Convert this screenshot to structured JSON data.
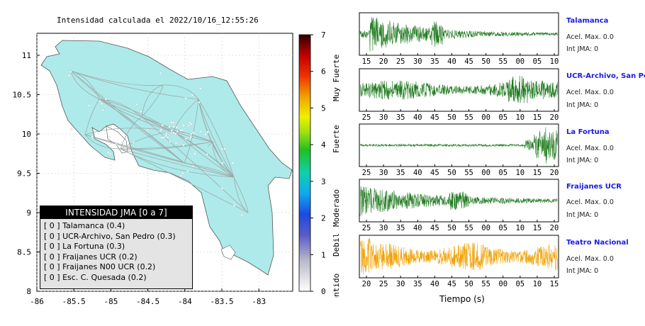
{
  "map": {
    "title": "Intensidad calculada el 2022/10/16_12:55:26",
    "x_ticks": [
      "-86",
      "-85.5",
      "-85",
      "-84.5",
      "-84",
      "-83.5",
      "-83"
    ],
    "y_ticks": [
      "11",
      "10.5",
      "10",
      "9.5",
      "9",
      "8.5",
      "8"
    ],
    "land_color": "#aeeaea",
    "legend": {
      "title": "INTENSIDAD JMA [0 a 7]",
      "items": [
        {
          "label": "[ 0 ]  Talamanca (0.4)"
        },
        {
          "label": "[ 0 ]  UCR-Archivo, San Pedro (0.3)"
        },
        {
          "label": "[ 0 ]  La Fortuna (0.3)"
        },
        {
          "label": "[ 0 ]  Fraijanes UCR (0.2)"
        },
        {
          "label": "[ 0 ]  Fraijanes N00 UCR (0.2)"
        },
        {
          "label": "[ 0 ]  Esc. C. Quesada (0.2)"
        }
      ]
    }
  },
  "colorbar": {
    "ticks": [
      "7",
      "6",
      "5",
      "4",
      "3",
      "2",
      "1",
      "0"
    ],
    "labels": [
      "Muy Fuerte",
      "Fuerte",
      "Moderado",
      "Debil",
      "No sentido"
    ]
  },
  "waveforms": {
    "xlabel": "Tiempo (s)",
    "panels": [
      {
        "station": "Talamanca",
        "acel": "Acel. Max. 0.0",
        "jma": "Int JMA: 0",
        "color": "#1f7a1f",
        "ticks": [
          "15",
          "20",
          "25",
          "30",
          "35",
          "40",
          "45",
          "50",
          "55",
          "00",
          "05",
          "10"
        ],
        "envelope": "decay"
      },
      {
        "station": "UCR-Archivo, San Pedro",
        "acel": "Acel. Max. 0.0",
        "jma": "Int JMA: 0",
        "color": "#1f7a1f",
        "ticks": [
          "25",
          "30",
          "35",
          "40",
          "45",
          "50",
          "55",
          "00",
          "05",
          "10",
          "15",
          "20"
        ],
        "envelope": "steady"
      },
      {
        "station": "La Fortuna",
        "acel": "Acel. Max. 0.0",
        "jma": "Int JMA: 0",
        "color": "#1f7a1f",
        "ticks": [
          "25",
          "30",
          "35",
          "40",
          "45",
          "50",
          "55",
          "00",
          "05",
          "10",
          "15",
          "20"
        ],
        "envelope": "late"
      },
      {
        "station": "Fraijanes UCR",
        "acel": "Acel. Max. 0.0",
        "jma": "Int JMA: 0",
        "color": "#1f7a1f",
        "ticks": [
          "25",
          "30",
          "35",
          "40",
          "45",
          "50",
          "55",
          "00",
          "05",
          "10",
          "15",
          "20"
        ],
        "envelope": "decay2"
      },
      {
        "station": "Teatro Nacional",
        "acel": "Acel. Max. 0.0",
        "jma": "Int JMA: 0",
        "color": "#f0a000",
        "ticks": [
          "20",
          "25",
          "30",
          "35",
          "40",
          "45",
          "50",
          "55",
          "00",
          "05",
          "10",
          "15"
        ],
        "envelope": "steady2"
      }
    ]
  }
}
